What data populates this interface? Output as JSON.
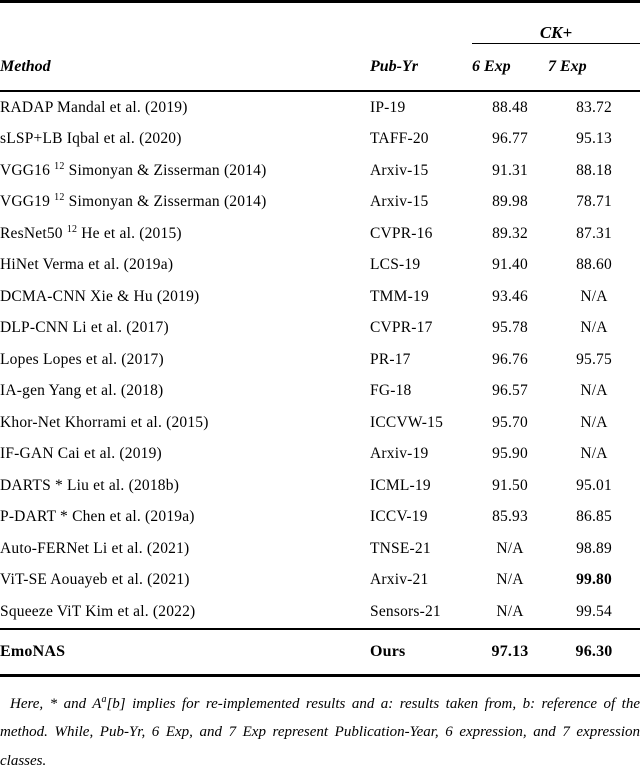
{
  "page": {
    "background": "#ffffff",
    "text_color": "#000000"
  },
  "table": {
    "group_header": "CK+",
    "columns": [
      "Method",
      "Pub-Yr",
      "6 Exp",
      "7 Exp"
    ],
    "rows": [
      {
        "method": "RADAP Mandal et al. (2019)",
        "method_sup": "",
        "method_cont": "",
        "pub": "IP-19",
        "exp6": "88.48",
        "exp7": "83.72",
        "exp6_bold": false,
        "exp7_bold": false
      },
      {
        "method": "sLSP+LB Iqbal et al. (2020)",
        "method_sup": "",
        "method_cont": "",
        "pub": "TAFF-20",
        "exp6": "96.77",
        "exp7": "95.13",
        "exp6_bold": false,
        "exp7_bold": false
      },
      {
        "method": "VGG16 ",
        "method_sup": "12",
        "method_cont": " Simonyan & Zisserman (2014)",
        "pub": "Arxiv-15",
        "exp6": "91.31",
        "exp7": "88.18",
        "exp6_bold": false,
        "exp7_bold": false
      },
      {
        "method": "VGG19 ",
        "method_sup": "12",
        "method_cont": " Simonyan & Zisserman (2014)",
        "pub": "Arxiv-15",
        "exp6": "89.98",
        "exp7": "78.71",
        "exp6_bold": false,
        "exp7_bold": false
      },
      {
        "method": "ResNet50 ",
        "method_sup": "12",
        "method_cont": " He et al. (2015)",
        "pub": "CVPR-16",
        "exp6": "89.32",
        "exp7": "87.31",
        "exp6_bold": false,
        "exp7_bold": false
      },
      {
        "method": "HiNet Verma et al. (2019a)",
        "method_sup": "",
        "method_cont": "",
        "pub": "LCS-19",
        "exp6": "91.40",
        "exp7": "88.60",
        "exp6_bold": false,
        "exp7_bold": false
      },
      {
        "method": "DCMA-CNN Xie & Hu (2019)",
        "method_sup": "",
        "method_cont": "",
        "pub": "TMM-19",
        "exp6": "93.46",
        "exp7": "N/A",
        "exp6_bold": false,
        "exp7_bold": false
      },
      {
        "method": "DLP-CNN Li et al. (2017)",
        "method_sup": "",
        "method_cont": "",
        "pub": "CVPR-17",
        "exp6": "95.78",
        "exp7": "N/A",
        "exp6_bold": false,
        "exp7_bold": false
      },
      {
        "method": "Lopes Lopes et al. (2017)",
        "method_sup": "",
        "method_cont": "",
        "pub": "PR-17",
        "exp6": "96.76",
        "exp7": "95.75",
        "exp6_bold": false,
        "exp7_bold": false
      },
      {
        "method": "IA-gen Yang et al. (2018)",
        "method_sup": "",
        "method_cont": "",
        "pub": "FG-18",
        "exp6": "96.57",
        "exp7": "N/A",
        "exp6_bold": false,
        "exp7_bold": false
      },
      {
        "method": "Khor-Net Khorrami et al. (2015)",
        "method_sup": "",
        "method_cont": "",
        "pub": "ICCVW-15",
        "exp6": "95.70",
        "exp7": "N/A",
        "exp6_bold": false,
        "exp7_bold": false
      },
      {
        "method": "IF-GAN Cai et al. (2019)",
        "method_sup": "",
        "method_cont": "",
        "pub": "Arxiv-19",
        "exp6": "95.90",
        "exp7": "N/A",
        "exp6_bold": false,
        "exp7_bold": false
      },
      {
        "method": "DARTS * Liu et al. (2018b)",
        "method_sup": "",
        "method_cont": "",
        "pub": "ICML-19",
        "exp6": "91.50",
        "exp7": "95.01",
        "exp6_bold": false,
        "exp7_bold": false
      },
      {
        "method": "P-DART * Chen et al. (2019a)",
        "method_sup": "",
        "method_cont": "",
        "pub": "ICCV-19",
        "exp6": "85.93",
        "exp7": "86.85",
        "exp6_bold": false,
        "exp7_bold": false
      },
      {
        "method": "Auto-FERNet Li et al. (2021)",
        "method_sup": "",
        "method_cont": "",
        "pub": "TNSE-21",
        "exp6": "N/A",
        "exp7": "98.89",
        "exp6_bold": false,
        "exp7_bold": false
      },
      {
        "method": "ViT-SE Aouayeb et al. (2021)",
        "method_sup": "",
        "method_cont": "",
        "pub": "Arxiv-21",
        "exp6": "N/A",
        "exp7": "99.80",
        "exp6_bold": false,
        "exp7_bold": true
      },
      {
        "method": "Squeeze ViT Kim et al. (2022)",
        "method_sup": "",
        "method_cont": "",
        "pub": "Sensors-21",
        "exp6": "N/A",
        "exp7": "99.54",
        "exp6_bold": false,
        "exp7_bold": false
      }
    ],
    "ours": {
      "method": "EmoNAS",
      "pub": "Ours",
      "exp6": "97.13",
      "exp7": "96.30"
    }
  },
  "footnote": {
    "part1": "Here, * and A",
    "sup": "a",
    "part2": "[b] implies for re-implemented results and a: results taken from, b: reference of the method. While, Pub-Yr, 6 Exp, and 7 Exp represent Publication-Year, 6 expression, and 7 expression classes."
  }
}
